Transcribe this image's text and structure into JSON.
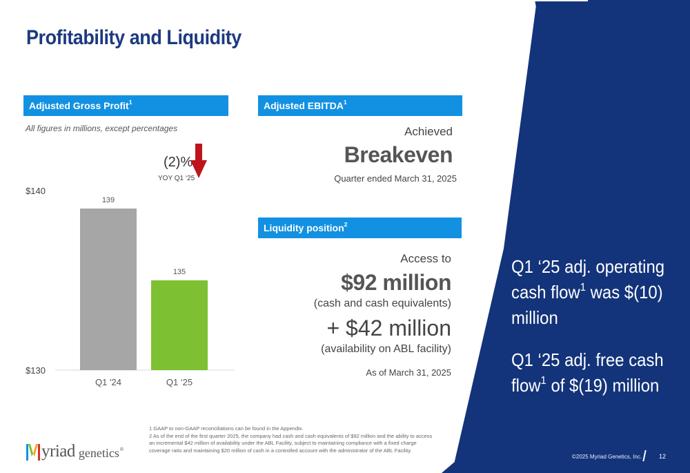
{
  "title": "Profitability and Liquidity",
  "colors": {
    "navy": "#13347a",
    "title_blue": "#1d3a80",
    "header_blue": "#1291e2",
    "bar_gray": "#a6a6a6",
    "bar_green": "#7dc032",
    "arrow_red": "#c0141c"
  },
  "gross_profit": {
    "header": "Adjusted Gross Profit",
    "header_sup": "1",
    "note": "All figures in millions, except percentages",
    "yoy_value": "(2)%",
    "yoy_label": "YOY Q1 ‘25",
    "arrow_icon": "down-arrow-icon"
  },
  "chart_data": {
    "type": "bar",
    "categories": [
      "Q1 '24",
      "Q1 ‘25"
    ],
    "values": [
      139,
      135
    ],
    "data_labels": [
      "139",
      "135"
    ],
    "ylim": [
      130,
      140
    ],
    "y_tick_labels": [
      "$130",
      "$140"
    ],
    "bar_colors": [
      "#a6a6a6",
      "#7dc032"
    ],
    "grid": false
  },
  "ebitda": {
    "header": "Adjusted EBITDA",
    "header_sup": "1",
    "achieved": "Achieved",
    "status": "Breakeven",
    "period": "Quarter ended March 31, 2025"
  },
  "liquidity": {
    "header": "Liquidity position",
    "header_sup": "2",
    "access": "Access to",
    "amount1": "$92 million",
    "desc1": "(cash and cash equivalents)",
    "amount2": "+ $42 million",
    "desc2": "(availability on ABL facility)",
    "as_of": "As of March 31, 2025"
  },
  "callout": {
    "line1_a": "Q1 ‘25 adj. operating cash flow",
    "line1_sup": "1",
    "line1_b": " was $(10) million",
    "line2_a": "Q1 ‘25 adj. free cash flow",
    "line2_sup": "1",
    "line2_b": " of $(19) million"
  },
  "footnotes": {
    "fn1": "1 GAAP to non-GAAP reconciliations can be found in the Appendix.",
    "fn2": "2 As of the end of the first quarter 2025, the company had cash and cash equivalents of $92 million and the ability to access an incremental $42 million of availability under the ABL Facility, subject to maintaining compliance with a fixed charge coverage ratio and maintaining $20 million of cash in a controlled account with the administrator of the ABL Facility."
  },
  "logo": {
    "word1": "yriad",
    "word2": "genetics",
    "reg": "®",
    "letter": "M"
  },
  "footer": {
    "copyright": "©2025 Myriad Genetics, Inc.",
    "page_number": "12"
  }
}
